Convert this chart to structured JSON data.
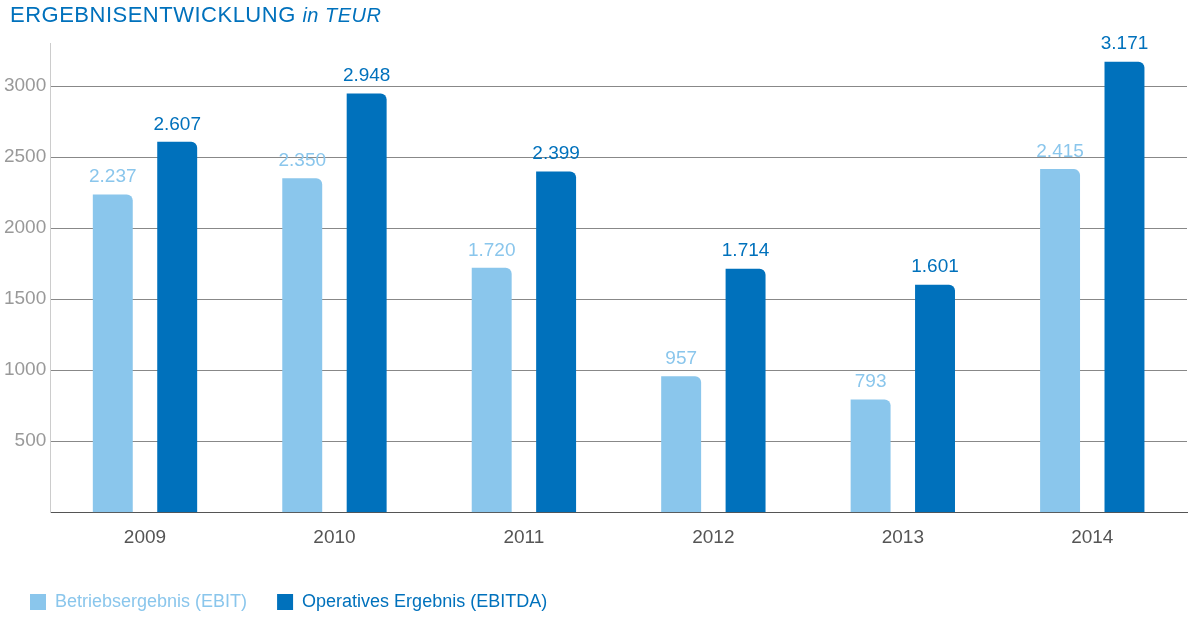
{
  "chart_data": {
    "type": "bar",
    "title": "ERGEBNISENTWICKLUNG",
    "subtitle": "in TEUR",
    "categories": [
      "2009",
      "2010",
      "2011",
      "2012",
      "2013",
      "2014"
    ],
    "series": [
      {
        "name": "Betriebsergebnis (EBIT)",
        "color": "#8ac6ec",
        "values": [
          2237,
          2350,
          1720,
          957,
          793,
          2415
        ],
        "value_labels": [
          "2.237",
          "2.350",
          "1.720",
          "957",
          "793",
          "2.415"
        ]
      },
      {
        "name": "Operatives Ergebnis (EBITDA)",
        "color": "#0071bc",
        "values": [
          2607,
          2948,
          2399,
          1714,
          1601,
          3171
        ],
        "value_labels": [
          "2.607",
          "2.948",
          "2.399",
          "1.714",
          "1.601",
          "3.171"
        ]
      }
    ],
    "ylim": [
      0,
      3300
    ],
    "yticks": [
      500,
      1000,
      1500,
      2000,
      2500,
      3000
    ],
    "grid": "y",
    "legend": "bottom left"
  }
}
